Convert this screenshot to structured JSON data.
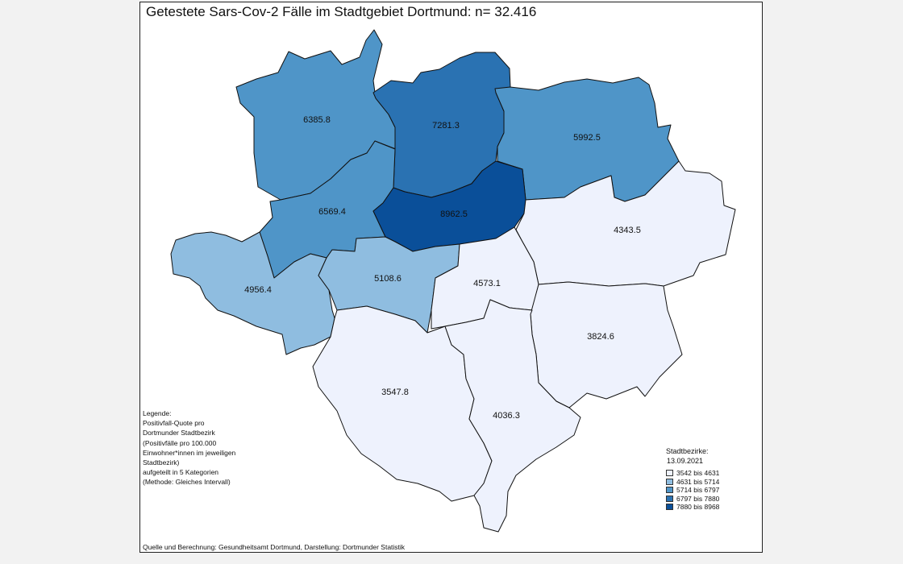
{
  "title": "Getestete Sars-Cov-2 Fälle im Stadtgebiet Dortmund: n= 32.416",
  "legend": {
    "lines": [
      "Legende:",
      "Positivfall-Quote pro",
      "Dortmunder Stadtbezirk",
      "(Positivfälle pro 100.000",
      "Einwohner*innen im jeweiligen",
      "Stadtbezirk)",
      "aufgeteilt in 5 Kategorien",
      "(Methode: Gleiches Intervall)"
    ],
    "box_title": "Stadtbezirke:",
    "box_date": "13.09.2021",
    "classes": [
      {
        "label": "3542 bis 4631",
        "color": "#eef2fd"
      },
      {
        "label": "4631 bis 5714",
        "color": "#8fbde0"
      },
      {
        "label": "5714 bis 6797",
        "color": "#4f95c8"
      },
      {
        "label": "6797 bis 7880",
        "color": "#2a72b2"
      },
      {
        "label": "7880 bis 8968",
        "color": "#0a4f99"
      }
    ]
  },
  "districts": [
    {
      "value": "6385.8",
      "class": 2
    },
    {
      "value": "7281.3",
      "class": 3
    },
    {
      "value": "5992.5",
      "class": 2
    },
    {
      "value": "6569.4",
      "class": 2
    },
    {
      "value": "8962.5",
      "class": 4
    },
    {
      "value": "4343.5",
      "class": 0
    },
    {
      "value": "4956.4",
      "class": 1
    },
    {
      "value": "5108.6",
      "class": 1
    },
    {
      "value": "4573.1",
      "class": 0
    },
    {
      "value": "3824.6",
      "class": 0
    },
    {
      "value": "3547.8",
      "class": 0
    },
    {
      "value": "4036.3",
      "class": 0
    }
  ],
  "source": "Quelle und Berechnung: Gesundheitsamt Dortmund, Darstellung: Dortmunder Statistik"
}
